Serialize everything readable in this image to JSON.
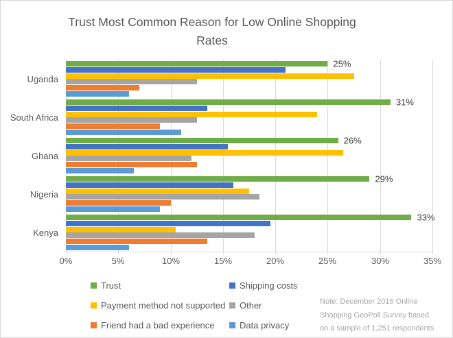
{
  "title": "Trust Most Common Reason for Low Online Shopping\nRates",
  "note": "Note: December 2016 Online\nShopping  GeoPoll Survey based\non a sample of 1,251 respondents",
  "chart_data": {
    "type": "bar",
    "orientation": "horizontal",
    "title": "Trust Most Common Reason for Low Online Shopping Rates",
    "categories": [
      "Uganda",
      "South Africa",
      "Ghana",
      "Nigeria",
      "Kenya"
    ],
    "series": [
      {
        "name": "Trust",
        "color": "#70AD47",
        "values": [
          25,
          31,
          26,
          29,
          33
        ],
        "labels": [
          "25%",
          "31%",
          "26%",
          "29%",
          "33%"
        ]
      },
      {
        "name": "Shipping costs",
        "color": "#4472C4",
        "values": [
          21,
          13.5,
          15.5,
          16,
          19.5
        ]
      },
      {
        "name": "Payment method not supported",
        "color": "#FFC000",
        "values": [
          27.5,
          24,
          26.5,
          17.5,
          10.5
        ]
      },
      {
        "name": "Other",
        "color": "#A5A5A5",
        "values": [
          12.5,
          12.5,
          12,
          18.5,
          18
        ]
      },
      {
        "name": "Friend had a bad experience",
        "color": "#ED7D31",
        "values": [
          7,
          9,
          12.5,
          10,
          13.5
        ]
      },
      {
        "name": "Data privacy",
        "color": "#5B9BD5",
        "values": [
          6,
          11,
          6.5,
          9,
          6
        ]
      }
    ],
    "x_axis": {
      "min": 0,
      "max": 35,
      "tick_step": 5,
      "tick_labels": [
        "0%",
        "5%",
        "10%",
        "15%",
        "20%",
        "25%",
        "30%",
        "35%"
      ]
    },
    "grid": true,
    "legend_position": "bottom",
    "data_labels_series": "Trust",
    "colors": {
      "title_text": "#595959",
      "axis_text": "#595959",
      "data_label_text": "#404040",
      "note_text": "#A6A6A6",
      "gridline": "#D9D9D9"
    }
  }
}
